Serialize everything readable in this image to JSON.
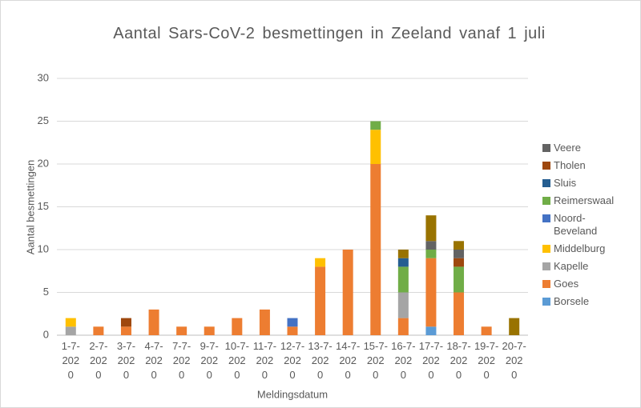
{
  "chart_data": {
    "type": "bar",
    "stacked": true,
    "title": "Aantal Sars-CoV-2 besmettingen in Zeeland vanaf 1 juli",
    "x_label": "Meldingsdatum",
    "y_label": "Aantal besmettingen",
    "categories": [
      "1-7-2020",
      "2-7-2020",
      "3-7-2020",
      "4-7-2020",
      "7-7-2020",
      "9-7-2020",
      "10-7-2020",
      "11-7-2020",
      "12-7-2020",
      "13-7-2020",
      "14-7-2020",
      "15-7-2020",
      "16-7-2020",
      "17-7-2020",
      "18-7-2020",
      "19-7-2020",
      "20-7-2020"
    ],
    "series": [
      {
        "name": "Borsele",
        "color": "#5b9bd5",
        "values": [
          0,
          0,
          0,
          0,
          0,
          0,
          0,
          0,
          0,
          0,
          0,
          0,
          0,
          1,
          0,
          0,
          0
        ]
      },
      {
        "name": "Goes",
        "color": "#ed7d31",
        "values": [
          0,
          1,
          1,
          3,
          1,
          1,
          2,
          3,
          1,
          8,
          10,
          20,
          2,
          8,
          5,
          1,
          0
        ]
      },
      {
        "name": "Kapelle",
        "color": "#a5a5a5",
        "values": [
          1,
          0,
          0,
          0,
          0,
          0,
          0,
          0,
          0,
          0,
          0,
          0,
          3,
          0,
          0,
          0,
          0
        ]
      },
      {
        "name": "Middelburg",
        "color": "#ffc000",
        "values": [
          1,
          0,
          0,
          0,
          0,
          0,
          0,
          0,
          0,
          1,
          0,
          4,
          0,
          0,
          0,
          0,
          0
        ]
      },
      {
        "name": "Noord-Beveland",
        "color": "#4472c4",
        "values": [
          0,
          0,
          0,
          0,
          0,
          0,
          0,
          0,
          1,
          0,
          0,
          0,
          0,
          0,
          0,
          0,
          0
        ]
      },
      {
        "name": "Reimerswaal",
        "color": "#70ad47",
        "values": [
          0,
          0,
          0,
          0,
          0,
          0,
          0,
          0,
          0,
          0,
          0,
          1,
          3,
          1,
          3,
          0,
          0
        ]
      },
      {
        "name": "Sluis",
        "color": "#255e91",
        "values": [
          0,
          0,
          0,
          0,
          0,
          0,
          0,
          0,
          0,
          0,
          0,
          0,
          1,
          0,
          0,
          0,
          0
        ]
      },
      {
        "name": "Tholen",
        "color": "#9e480e",
        "values": [
          0,
          0,
          1,
          0,
          0,
          0,
          0,
          0,
          0,
          0,
          0,
          0,
          0,
          0,
          1,
          0,
          0
        ]
      },
      {
        "name": "Veere",
        "color": "#636363",
        "values": [
          0,
          0,
          0,
          0,
          0,
          0,
          0,
          0,
          0,
          0,
          0,
          0,
          0,
          1,
          1,
          0,
          0
        ]
      },
      {
        "color": "#997300",
        "values": [
          0,
          0,
          0,
          0,
          0,
          0,
          0,
          0,
          0,
          0,
          0,
          0,
          1,
          3,
          1,
          0,
          2
        ]
      }
    ],
    "ylim": [
      0,
      30
    ],
    "yticks": [
      0,
      5,
      10,
      15,
      20,
      25,
      30
    ],
    "grid": true,
    "legend": "right"
  }
}
